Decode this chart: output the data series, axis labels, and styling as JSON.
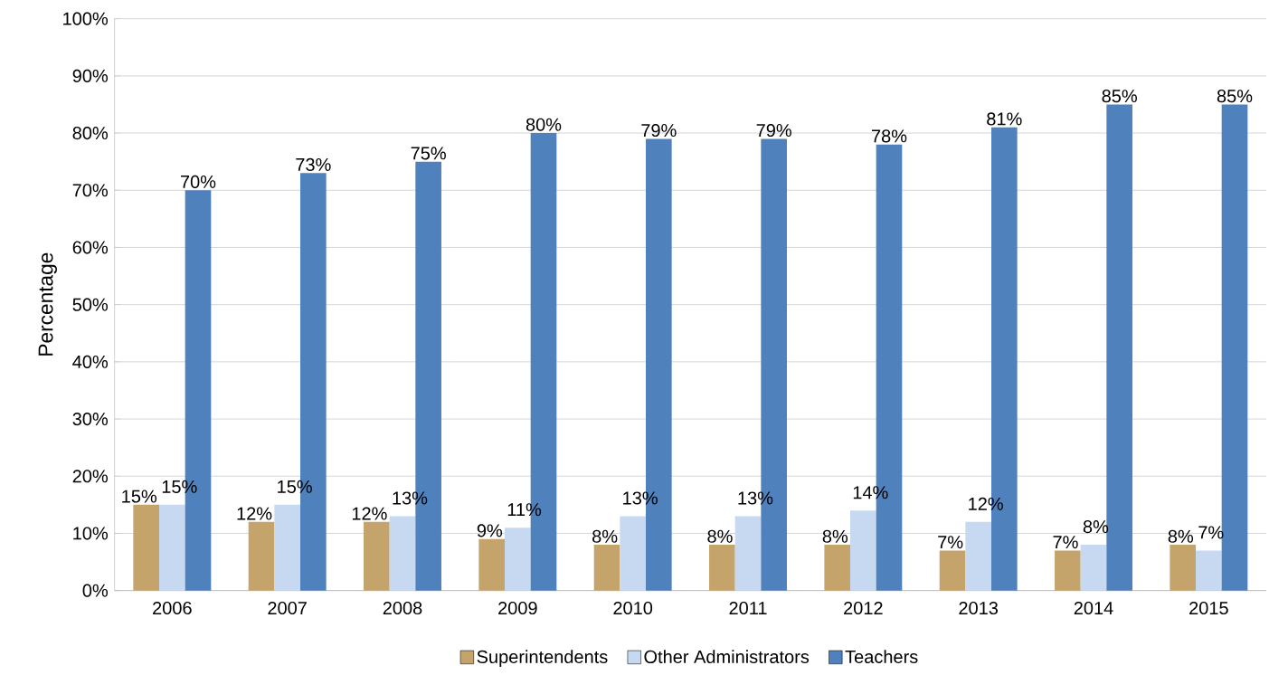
{
  "chart_data": {
    "type": "bar",
    "ylabel": "Percentage",
    "categories": [
      "2006",
      "2007",
      "2008",
      "2009",
      "2010",
      "2011",
      "2012",
      "2013",
      "2014",
      "2015"
    ],
    "series": [
      {
        "name": "Superintendents",
        "color": "#c4a46a",
        "values": [
          15,
          12,
          12,
          9,
          8,
          8,
          8,
          7,
          7,
          8
        ],
        "value_labels": [
          "15%",
          "12%",
          "12%",
          "9%",
          "8%",
          "8%",
          "8%",
          "7%",
          "7%",
          "8%"
        ]
      },
      {
        "name": "Other Administrators",
        "color": "#c6d9f1",
        "values": [
          15,
          15,
          13,
          11,
          13,
          13,
          14,
          12,
          8,
          7
        ],
        "value_labels": [
          "15%",
          "15%",
          "13%",
          "11%",
          "13%",
          "13%",
          "14%",
          "12%",
          "8%",
          "7%"
        ]
      },
      {
        "name": "Teachers",
        "color": "#4f81bd",
        "values": [
          70,
          73,
          75,
          80,
          79,
          79,
          78,
          81,
          85,
          85
        ],
        "value_labels": [
          "70%",
          "73%",
          "75%",
          "80%",
          "79%",
          "79%",
          "78%",
          "81%",
          "85%",
          "85%"
        ]
      }
    ],
    "ylim": [
      0,
      100
    ],
    "yticks": [
      {
        "value": 0,
        "label": "0%"
      },
      {
        "value": 10,
        "label": "10%"
      },
      {
        "value": 20,
        "label": "20%"
      },
      {
        "value": 30,
        "label": "30%"
      },
      {
        "value": 40,
        "label": "40%"
      },
      {
        "value": 50,
        "label": "50%"
      },
      {
        "value": 60,
        "label": "60%"
      },
      {
        "value": 70,
        "label": "70%"
      },
      {
        "value": 80,
        "label": "80%"
      },
      {
        "value": 90,
        "label": "90%"
      },
      {
        "value": 100,
        "label": "100%"
      }
    ],
    "grid": "y",
    "legend": "bottom"
  }
}
